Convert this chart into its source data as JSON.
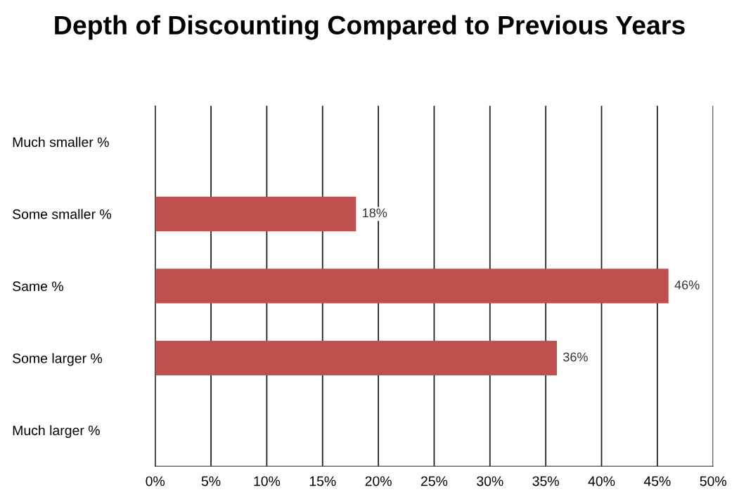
{
  "chart_data": {
    "type": "bar",
    "orientation": "horizontal",
    "title": "Depth of Discounting Compared to Previous Years",
    "categories": [
      "Much smaller %",
      "Some smaller %",
      "Same %",
      "Some larger %",
      "Much larger %"
    ],
    "values": [
      null,
      18,
      46,
      36,
      null
    ],
    "color": "#c0504d",
    "value_labels": [
      null,
      "18%",
      "46%",
      "36%",
      null
    ],
    "xlim": [
      0,
      50
    ],
    "xticks": [
      {
        "value": 0,
        "label": "0%"
      },
      {
        "value": 5,
        "label": "5%"
      },
      {
        "value": 10,
        "label": "10%"
      },
      {
        "value": 15,
        "label": "15%"
      },
      {
        "value": 20,
        "label": "20%"
      },
      {
        "value": 25,
        "label": "25%"
      },
      {
        "value": 30,
        "label": "30%"
      },
      {
        "value": 35,
        "label": "35%"
      },
      {
        "value": 40,
        "label": "40%"
      },
      {
        "value": 45,
        "label": "45%"
      },
      {
        "value": 50,
        "label": "50%"
      }
    ],
    "grid": "x",
    "legend": false
  }
}
